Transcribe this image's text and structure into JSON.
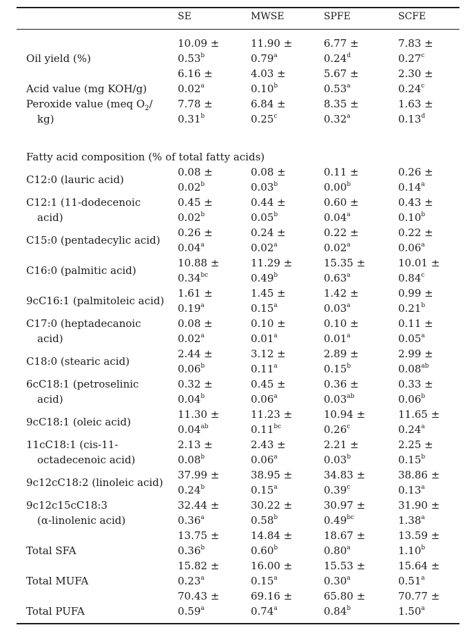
{
  "table": {
    "headers": [
      "SE",
      "MWSE",
      "SPFE",
      "SCFE"
    ],
    "section_heading": "Fatty acid composition (% of total fatty acids)",
    "rows": [
      {
        "label": [
          "Oil yield (%)"
        ],
        "cells": [
          [
            "10.09 ±",
            "0.53",
            "b"
          ],
          [
            "11.90 ±",
            "0.79",
            "a"
          ],
          [
            "6.77 ±",
            "0.24",
            "d"
          ],
          [
            "7.83 ±",
            "0.27",
            "c"
          ]
        ]
      },
      {
        "label": [
          "Acid value (mg KOH/g)"
        ],
        "cells": [
          [
            "6.16 ±",
            "0.02",
            "a"
          ],
          [
            "4.03 ±",
            "0.10",
            "b"
          ],
          [
            "5.67 ±",
            "0.53",
            "a"
          ],
          [
            "2.30 ±",
            "0.24",
            "c"
          ]
        ]
      },
      {
        "label": [
          "Peroxide value (meq O",
          "kg)"
        ],
        "label_sub": "2",
        "label_suffix": "/",
        "cells": [
          [
            "7.78 ±",
            "0.31",
            "b"
          ],
          [
            "6.84 ±",
            "0.25",
            "c"
          ],
          [
            "8.35 ±",
            "0.32",
            "a"
          ],
          [
            "1.63 ±",
            "0.13",
            "d"
          ]
        ]
      },
      {
        "label": [
          "C12:0 (lauric acid)"
        ],
        "cells": [
          [
            "0.08 ±",
            "0.02",
            "b"
          ],
          [
            "0.08 ±",
            "0.03",
            "b"
          ],
          [
            "0.11 ±",
            "0.00",
            "b"
          ],
          [
            "0.26 ±",
            "0.14",
            "a"
          ]
        ]
      },
      {
        "label": [
          "C12:1 (11-dodecenoic",
          "acid)"
        ],
        "cells": [
          [
            "0.45 ±",
            "0.02",
            "b"
          ],
          [
            "0.44 ±",
            "0.05",
            "b"
          ],
          [
            "0.60 ±",
            "0.04",
            "a"
          ],
          [
            "0.43 ±",
            "0.10",
            "b"
          ]
        ]
      },
      {
        "label": [
          "C15:0 (pentadecylic acid)"
        ],
        "cells": [
          [
            "0.26 ±",
            "0.04",
            "a"
          ],
          [
            "0.24 ±",
            "0.02",
            "a"
          ],
          [
            "0.22 ±",
            "0.02",
            "a"
          ],
          [
            "0.22 ±",
            "0.06",
            "a"
          ]
        ]
      },
      {
        "label": [
          "C16:0 (palmitic acid)"
        ],
        "cells": [
          [
            "10.88 ±",
            "0.34",
            "bc"
          ],
          [
            "11.29 ±",
            "0.49",
            "b"
          ],
          [
            "15.35 ±",
            "0.63",
            "a"
          ],
          [
            "10.01 ±",
            "0.84",
            "c"
          ]
        ]
      },
      {
        "label": [
          "9cC16:1 (palmitoleic acid)"
        ],
        "cells": [
          [
            "1.61 ±",
            "0.19",
            "a"
          ],
          [
            "1.45 ±",
            "0.15",
            "a"
          ],
          [
            "1.42 ±",
            "0.03",
            "a"
          ],
          [
            "0.99 ±",
            "0.21",
            "b"
          ]
        ]
      },
      {
        "label": [
          "C17:0 (heptadecanoic",
          "acid)"
        ],
        "cells": [
          [
            "0.08 ±",
            "0.02",
            "a"
          ],
          [
            "0.10 ±",
            "0.01",
            "a"
          ],
          [
            "0.10 ±",
            "0.01",
            "a"
          ],
          [
            "0.11 ±",
            "0.05",
            "a"
          ]
        ]
      },
      {
        "label": [
          "C18:0 (stearic acid)"
        ],
        "cells": [
          [
            "2.44 ±",
            "0.06",
            "b"
          ],
          [
            "3.12 ±",
            "0.11",
            "a"
          ],
          [
            "2.89 ±",
            "0.15",
            "b"
          ],
          [
            "2.99 ±",
            "0.08",
            "ab"
          ]
        ]
      },
      {
        "label": [
          "6cC18:1 (petroselinic",
          "acid)"
        ],
        "cells": [
          [
            "0.32 ±",
            "0.04",
            "b"
          ],
          [
            "0.45 ±",
            "0.06",
            "a"
          ],
          [
            "0.36 ±",
            "0.03",
            "ab"
          ],
          [
            "0.33 ±",
            "0.06",
            "b"
          ]
        ]
      },
      {
        "label": [
          "9cC18:1 (oleic acid)"
        ],
        "cells": [
          [
            "11.30 ±",
            "0.04",
            "ab"
          ],
          [
            "11.23 ±",
            "0.11",
            "bc"
          ],
          [
            "10.94 ±",
            "0.26",
            "c"
          ],
          [
            "11.65 ±",
            "0.24",
            "a"
          ]
        ]
      },
      {
        "label": [
          "11cC18:1 (cis-11-",
          "octadecenoic acid)"
        ],
        "cells": [
          [
            "2.13 ±",
            "0.08",
            "b"
          ],
          [
            "2.43 ±",
            "0.06",
            "a"
          ],
          [
            "2.21 ±",
            "0.03",
            "b"
          ],
          [
            "2.25 ±",
            "0.15",
            "b"
          ]
        ]
      },
      {
        "label": [
          "9c12cC18:2 (linoleic acid)"
        ],
        "cells": [
          [
            "37.99 ±",
            "0.24",
            "b"
          ],
          [
            "38.95 ±",
            "0.15",
            "a"
          ],
          [
            "34.83 ±",
            "0.39",
            "c"
          ],
          [
            "38.86 ±",
            "0.13",
            "a"
          ]
        ]
      },
      {
        "label": [
          "9c12c15cC18:3",
          "(α-linolenic acid)"
        ],
        "cells": [
          [
            "32.44 ±",
            "0.36",
            "a"
          ],
          [
            "30.22 ±",
            "0.58",
            "b"
          ],
          [
            "30.97 ±",
            "0.49",
            "bc"
          ],
          [
            "31.90 ±",
            "1.38",
            "a"
          ]
        ]
      },
      {
        "label": [
          "Total SFA"
        ],
        "cells": [
          [
            "13.75 ±",
            "0.36",
            "b"
          ],
          [
            "14.84 ±",
            "0.60",
            "b"
          ],
          [
            "18.67 ±",
            "0.80",
            "a"
          ],
          [
            "13.59 ±",
            "1.10",
            "b"
          ]
        ]
      },
      {
        "label": [
          "Total MUFA"
        ],
        "cells": [
          [
            "15.82 ±",
            "0.23",
            "a"
          ],
          [
            "16.00 ±",
            "0.15",
            "a"
          ],
          [
            "15.53 ±",
            "0.30",
            "a"
          ],
          [
            "15.64 ±",
            "0.51",
            "a"
          ]
        ]
      },
      {
        "label": [
          "Total PUFA"
        ],
        "cells": [
          [
            "70.43 ±",
            "0.59",
            "a"
          ],
          [
            "69.16 ±",
            "0.74",
            "a"
          ],
          [
            "65.80 ±",
            "0.84",
            "b"
          ],
          [
            "70.77 ±",
            "1.50",
            "a"
          ]
        ]
      }
    ]
  }
}
